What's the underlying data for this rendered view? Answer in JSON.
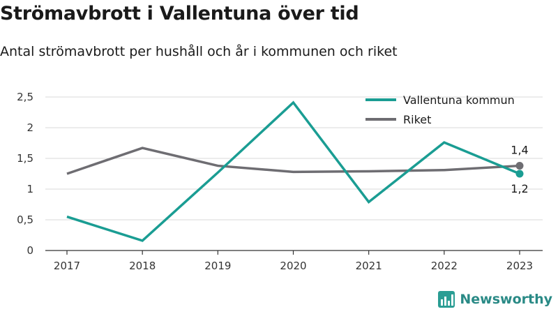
{
  "title": "Strömavbrott i Vallentuna över tid",
  "subtitle": "Antal strömavbrott per hushåll och år i kommunen och riket",
  "brand": {
    "name": "Newsworthy",
    "icon": "bar-chart-logo-icon",
    "color": "#2a9d94"
  },
  "chart_data": {
    "type": "line",
    "x": [
      "2017",
      "2018",
      "2019",
      "2020",
      "2021",
      "2022",
      "2023"
    ],
    "ylim": [
      0,
      2.5
    ],
    "yticks": [
      0,
      0.5,
      1,
      1.5,
      2,
      2.5
    ],
    "ytick_labels": [
      "0",
      "0,5",
      "1",
      "1,5",
      "2",
      "2,5"
    ],
    "grid": true,
    "legend_position": "top-right",
    "series": [
      {
        "name": "Vallentuna kommun",
        "color": "#1a9d93",
        "values": [
          0.55,
          0.16,
          1.27,
          2.41,
          0.79,
          1.76,
          1.25
        ],
        "end_label": "1,2",
        "end_label_position": "below"
      },
      {
        "name": "Riket",
        "color": "#6e6d72",
        "values": [
          1.25,
          1.67,
          1.38,
          1.28,
          1.29,
          1.31,
          1.38
        ],
        "end_label": "1,4",
        "end_label_position": "above"
      }
    ]
  }
}
